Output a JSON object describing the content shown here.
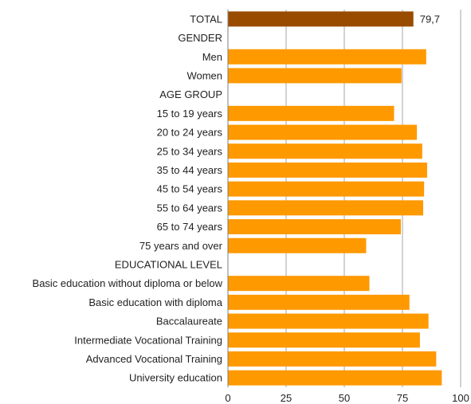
{
  "chart_data": {
    "type": "bar",
    "orientation": "horizontal",
    "categories": [
      "TOTAL",
      "GENDER",
      "Men",
      "Women",
      "AGE GROUP",
      "15 to 19 years",
      "20 to 24 years",
      "25 to 34 years",
      "35 to 44 years",
      "45 to 54 years",
      "55 to 64 years",
      "65 to 74 years",
      "75 years and over",
      "EDUCATIONAL LEVEL",
      "Basic education without diploma or below",
      "Basic education with diploma",
      "Baccalaureate",
      "Intermediate Vocational Training",
      "Advanced Vocational Training",
      "University education"
    ],
    "values": [
      79.7,
      null,
      85.2,
      74.6,
      null,
      71.4,
      81.2,
      83.5,
      85.6,
      84.3,
      83.9,
      74.3,
      59.4,
      null,
      60.8,
      78.0,
      86.2,
      82.5,
      89.5,
      91.9
    ],
    "data_labels": [
      "79,7",
      "",
      "",
      "",
      "",
      "",
      "",
      "",
      "",
      "",
      "",
      "",
      "",
      "",
      "",
      "",
      "",
      "",
      "",
      ""
    ],
    "highlight_index": 0,
    "xlim": [
      0,
      100
    ],
    "xticks": [
      "0",
      "25",
      "50",
      "75",
      "100"
    ],
    "grid": "vertical",
    "legend": "none",
    "colors": {
      "bar": "#FF9900",
      "highlight": "#994C00",
      "grid": "#A6A6A6",
      "axis": "#7F7F7F"
    }
  }
}
